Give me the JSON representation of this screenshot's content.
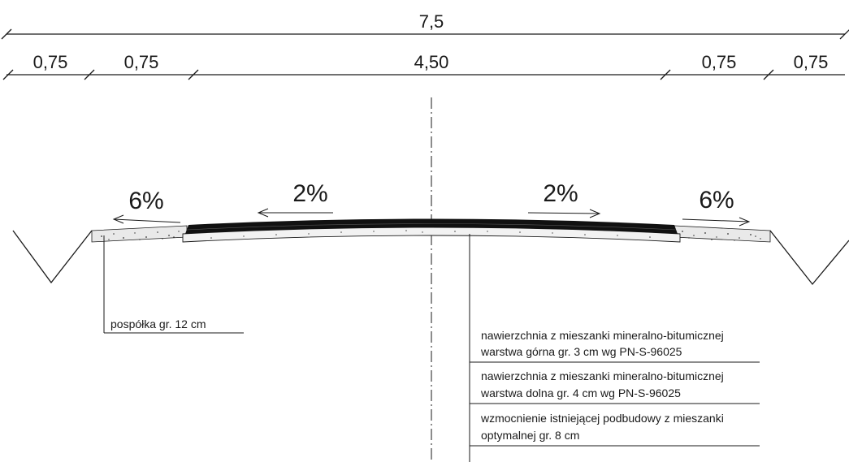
{
  "dimensions": {
    "total": "7,5",
    "segments": [
      "0,75",
      "0,75",
      "4,50",
      "0,75",
      "0,75"
    ]
  },
  "slopes": {
    "left_shoulder": "6%",
    "left_lane": "2%",
    "right_lane": "2%",
    "right_shoulder": "6%"
  },
  "labels": {
    "shoulder_layer": "pospółka gr. 12 cm",
    "layers": [
      [
        "nawierzchnia z mieszanki mineralno-bitumicznej",
        "warstwa górna gr. 3 cm wg PN-S-96025"
      ],
      [
        "nawierzchnia z mieszanki mineralno-bitumicznej",
        "warstwa dolna gr. 4 cm wg PN-S-96025"
      ],
      [
        "wzmocnienie istniejącej podbudowy z mieszanki",
        "optymalnej gr. 8 cm"
      ]
    ]
  },
  "colors": {
    "ink": "#1a1a1a",
    "asphalt": "#111111",
    "base_fill": "#f2f2f2",
    "gravel_fill": "#e9e9e9"
  }
}
